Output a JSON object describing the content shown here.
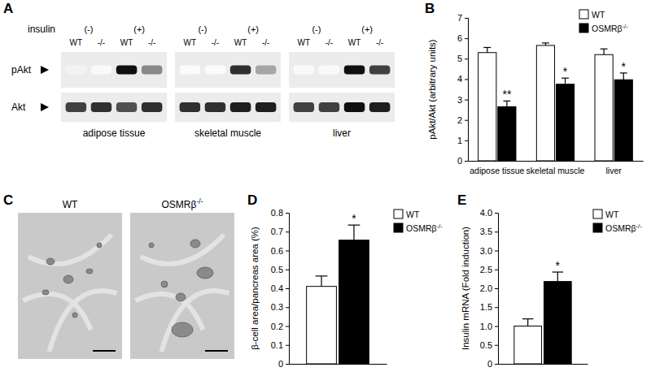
{
  "panel_labels": [
    "A",
    "B",
    "C",
    "D",
    "E"
  ],
  "blot": {
    "treatment_label": "insulin",
    "treatments": [
      "(-)",
      "(+)"
    ],
    "genotypes": [
      "WT",
      "-/-",
      "WT",
      "-/-"
    ],
    "rows": [
      "pAkt",
      "Akt"
    ],
    "tissues": [
      "adipose tissue",
      "skeletal muscle",
      "liver"
    ],
    "bands": [
      [
        [
          0.1,
          0.05,
          0.95,
          0.55
        ],
        [
          0.03,
          0.03,
          0.85,
          0.45
        ],
        [
          0.05,
          0.05,
          0.95,
          0.8
        ]
      ],
      [
        [
          0.8,
          0.85,
          0.75,
          0.85
        ],
        [
          0.85,
          0.85,
          0.9,
          0.9
        ],
        [
          0.8,
          0.8,
          0.95,
          0.9
        ]
      ]
    ]
  },
  "histology": {
    "titles": [
      "WT",
      "OSMRβ-/-"
    ]
  },
  "chart_data": [
    {
      "type": "bar",
      "y_label": "pAkt/Akt (arbitrary units)",
      "categories": [
        "adipose tissue",
        "skeletal muscle",
        "liver"
      ],
      "series": [
        {
          "name": "WT",
          "color": "#ffffff",
          "values": [
            5.3,
            5.65,
            5.2
          ],
          "errors": [
            0.25,
            0.12,
            0.28
          ]
        },
        {
          "name": "OSMRβ-/-",
          "color": "#000000",
          "values": [
            2.65,
            3.75,
            3.97
          ],
          "errors": [
            0.28,
            0.3,
            0.33
          ]
        }
      ],
      "ylim": [
        0,
        7
      ],
      "yticks": [
        0,
        1,
        2,
        3,
        4,
        5,
        6,
        7
      ],
      "legend": "upper right",
      "annotations": [
        {
          "text": "**",
          "series": 1,
          "category": 0
        },
        {
          "text": "*",
          "series": 1,
          "category": 1
        },
        {
          "text": "*",
          "series": 1,
          "category": 2
        }
      ]
    },
    {
      "type": "bar",
      "y_label": "β-cell area/pancreas area (%)",
      "categories": [
        null
      ],
      "series": [
        {
          "name": "WT",
          "color": "#ffffff",
          "values": [
            0.41
          ],
          "errors": [
            0.055
          ]
        },
        {
          "name": "OSMRβ-/-",
          "color": "#000000",
          "values": [
            0.655
          ],
          "errors": [
            0.08
          ]
        }
      ],
      "ylim": [
        0,
        0.8
      ],
      "yticks": [
        0,
        0.1,
        0.2,
        0.3,
        0.4,
        0.5,
        0.6,
        0.7,
        0.8
      ],
      "legend": "upper right",
      "annotations": [
        {
          "text": "*",
          "series": 1,
          "category": 0
        }
      ]
    },
    {
      "type": "bar",
      "y_label": "Insulin mRNA (Fold induction)",
      "categories": [
        null
      ],
      "series": [
        {
          "name": "WT",
          "color": "#ffffff",
          "values": [
            1.0
          ],
          "errors": [
            0.19
          ]
        },
        {
          "name": "OSMRβ-/-",
          "color": "#000000",
          "values": [
            2.18
          ],
          "errors": [
            0.25
          ]
        }
      ],
      "ylim": [
        0,
        4
      ],
      "yticks": [
        0,
        0.5,
        {
          "value": 1,
          "label": "1.0"
        },
        1.5,
        {
          "value": 2,
          "label": "2.0"
        },
        2.5,
        {
          "value": 3,
          "label": "3.0"
        },
        3.5,
        {
          "value": 4,
          "label": "4.0"
        }
      ],
      "legend": "upper right",
      "annotations": [
        {
          "text": "*",
          "series": 1,
          "category": 0
        }
      ]
    }
  ]
}
